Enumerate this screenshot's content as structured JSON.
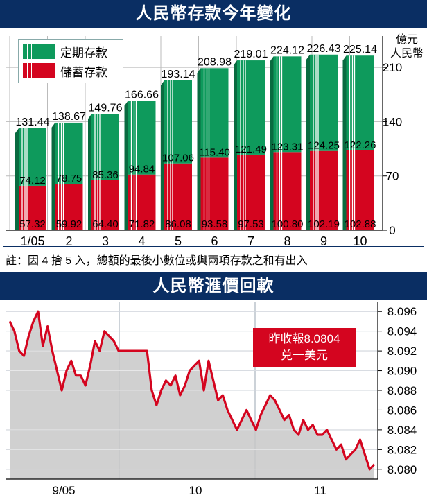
{
  "panel1": {
    "title": "人民幣存款今年變化",
    "unit_line1": "億元",
    "unit_line2": "人民幣",
    "note": "註：因 4 捨 5 入，總額的最後小數位或與兩項存款之和有出入",
    "legend": [
      {
        "label": "定期存款",
        "color": "#0e9a5c"
      },
      {
        "label": "儲蓄存款",
        "color": "#d4051f"
      }
    ]
  },
  "panel2": {
    "title": "人民幣滙價回軟",
    "callout_line1": "昨收報8.0804",
    "callout_line2": "兑一美元"
  },
  "colors": {
    "navy": "#0a2e63",
    "green": "#0e9a5c",
    "red": "#d4051f",
    "grey_fill": "#c8c8c8"
  },
  "chart_data": [
    {
      "type": "bar",
      "stacked": true,
      "categories": [
        "1/05",
        "2",
        "3",
        "4",
        "5",
        "6",
        "7",
        "8",
        "9",
        "10"
      ],
      "series": [
        {
          "name": "儲蓄存款",
          "values": [
            57.32,
            59.92,
            64.4,
            71.82,
            86.08,
            93.58,
            97.53,
            100.8,
            102.19,
            102.88
          ]
        },
        {
          "name": "定期存款",
          "values": [
            74.12,
            78.75,
            85.36,
            94.84,
            107.06,
            115.4,
            121.49,
            123.31,
            124.25,
            122.26
          ]
        }
      ],
      "totals": [
        131.44,
        138.67,
        149.76,
        166.66,
        193.14,
        208.98,
        219.01,
        224.12,
        226.43,
        225.14
      ],
      "yticks": [
        0,
        70,
        140,
        210
      ],
      "ylim": [
        0,
        245
      ],
      "ylabel": "億元人民幣",
      "legend_position": "top-left"
    },
    {
      "type": "area",
      "xticks": [
        "9/05",
        "10",
        "11"
      ],
      "yticks": [
        8.08,
        8.082,
        8.084,
        8.086,
        8.088,
        8.09,
        8.092,
        8.094,
        8.096
      ],
      "ylim": [
        8.079,
        8.097
      ],
      "grid": true,
      "values": [
        8.095,
        8.094,
        8.092,
        8.0915,
        8.0935,
        8.095,
        8.096,
        8.0925,
        8.0945,
        8.092,
        8.09,
        8.088,
        8.09,
        8.091,
        8.0895,
        8.0895,
        8.0885,
        8.0905,
        8.093,
        8.092,
        8.094,
        8.0935,
        8.093,
        8.092,
        8.092,
        8.092,
        8.092,
        8.092,
        8.092,
        8.092,
        8.088,
        8.0865,
        8.088,
        8.089,
        8.0885,
        8.0895,
        8.0875,
        8.0885,
        8.09,
        8.0905,
        8.091,
        8.088,
        8.091,
        8.089,
        8.087,
        8.0875,
        8.086,
        8.085,
        8.084,
        8.085,
        8.086,
        8.085,
        8.084,
        8.0855,
        8.0865,
        8.0875,
        8.087,
        8.086,
        8.085,
        8.0855,
        8.084,
        8.0835,
        8.085,
        8.084,
        8.0845,
        8.0835,
        8.0835,
        8.084,
        8.083,
        8.082,
        8.0825,
        8.081,
        8.0815,
        8.082,
        8.083,
        8.0815,
        8.08,
        8.0805
      ],
      "last_value": 8.0804
    }
  ]
}
